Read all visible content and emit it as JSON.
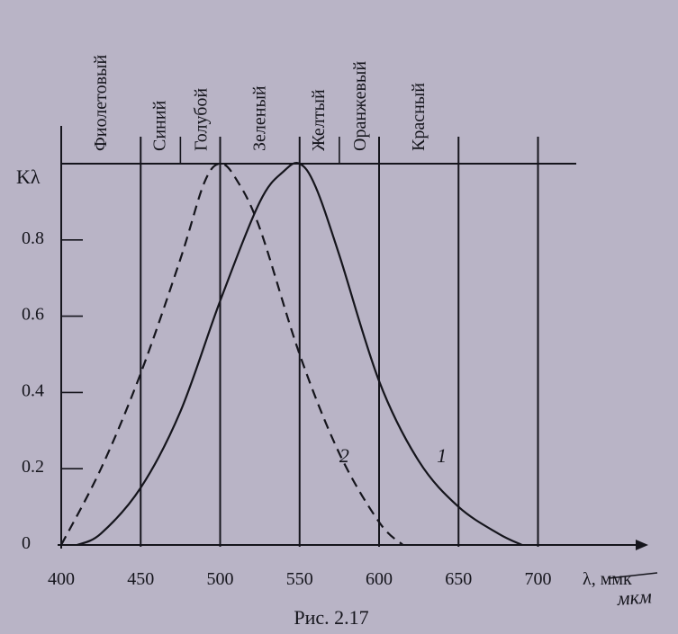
{
  "chart_data": {
    "type": "line",
    "ylabel": "Kλ",
    "xlabel": "λ, ммк",
    "xlabel_handwritten": "мкм",
    "caption": "Рис. 2.17",
    "xlim": [
      400,
      720
    ],
    "ylim": [
      0,
      1.0
    ],
    "x_ticks": [
      400,
      450,
      500,
      550,
      600,
      650,
      700
    ],
    "y_ticks": [
      {
        "value": 0,
        "label": "0"
      },
      {
        "value": 0.2,
        "label": "0.2"
      },
      {
        "value": 0.4,
        "label": "0.4"
      },
      {
        "value": 0.6,
        "label": "0.6"
      },
      {
        "value": 0.8,
        "label": "0.8"
      },
      {
        "value": 1.0,
        "label": ""
      }
    ],
    "band_boundaries": [
      450,
      475,
      500,
      550,
      575,
      600,
      650,
      700
    ],
    "color_bands": [
      {
        "label": "Фиолетовый",
        "center": 425
      },
      {
        "label": "Синий",
        "center": 462
      },
      {
        "label": "Голубой",
        "center": 488
      },
      {
        "label": "Зеленый",
        "center": 525
      },
      {
        "label": "Желтый",
        "center": 562
      },
      {
        "label": "Оранжевый",
        "center": 588
      },
      {
        "label": "Красный",
        "center": 625
      }
    ],
    "series": [
      {
        "name": "1",
        "style": "solid",
        "label_at": {
          "x": 625,
          "y": 0.24
        },
        "x": [
          410,
          425,
          450,
          475,
          500,
          525,
          540,
          550,
          560,
          575,
          600,
          625,
          650,
          675,
          690
        ],
        "y": [
          0.0,
          0.03,
          0.15,
          0.35,
          0.64,
          0.9,
          0.98,
          1.0,
          0.94,
          0.76,
          0.43,
          0.22,
          0.1,
          0.03,
          0.0
        ]
      },
      {
        "name": "2",
        "style": "dashed",
        "label_at": {
          "x": 575,
          "y": 0.24
        },
        "x": [
          400,
          425,
          450,
          475,
          490,
          500,
          510,
          525,
          550,
          575,
          600,
          615
        ],
        "y": [
          0.0,
          0.2,
          0.45,
          0.75,
          0.95,
          1.0,
          0.96,
          0.83,
          0.5,
          0.24,
          0.06,
          0.0
        ]
      }
    ]
  }
}
